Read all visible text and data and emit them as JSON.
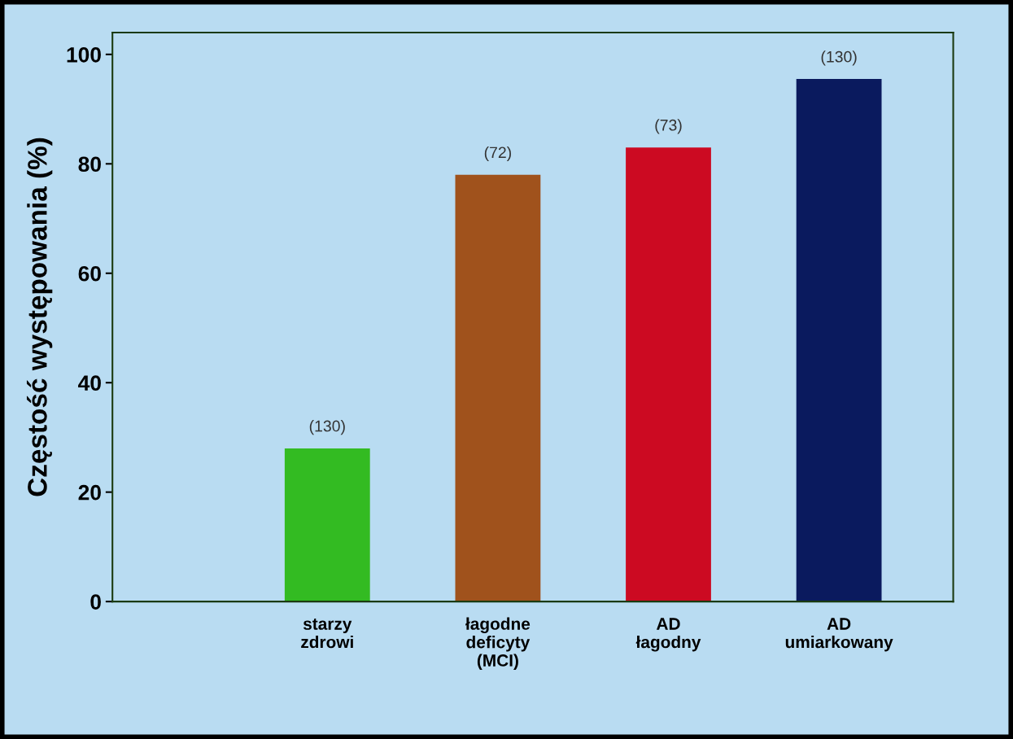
{
  "chart_data": {
    "type": "bar",
    "ylabel": "Częstość występowania (%)",
    "categories": [
      "starzy\nzdrowi",
      "łagodne\ndeficyty\n(MCI)",
      "AD\nłagodny",
      "AD\numiarkowany"
    ],
    "values": [
      28,
      78,
      83,
      95.5
    ],
    "colors": [
      "#33bb22",
      "#a0521c",
      "#cc0a22",
      "#0a1a5e"
    ],
    "annotations": [
      {
        "text": "(130)",
        "x": "starzy\nzdrowi",
        "y": 28
      },
      {
        "text": "(72)",
        "x": "łagodne\ndeficyty\n(MCI)",
        "y": 78
      },
      {
        "text": "(73)",
        "x": "AD\nłagodny",
        "y": 83
      },
      {
        "text": "(130)",
        "x": "AD\numiarkowany",
        "y": 95.5
      }
    ],
    "ylim": [
      0,
      104
    ],
    "yticks": [
      0,
      20,
      40,
      60,
      80,
      100
    ],
    "grid": false,
    "legend": false
  }
}
